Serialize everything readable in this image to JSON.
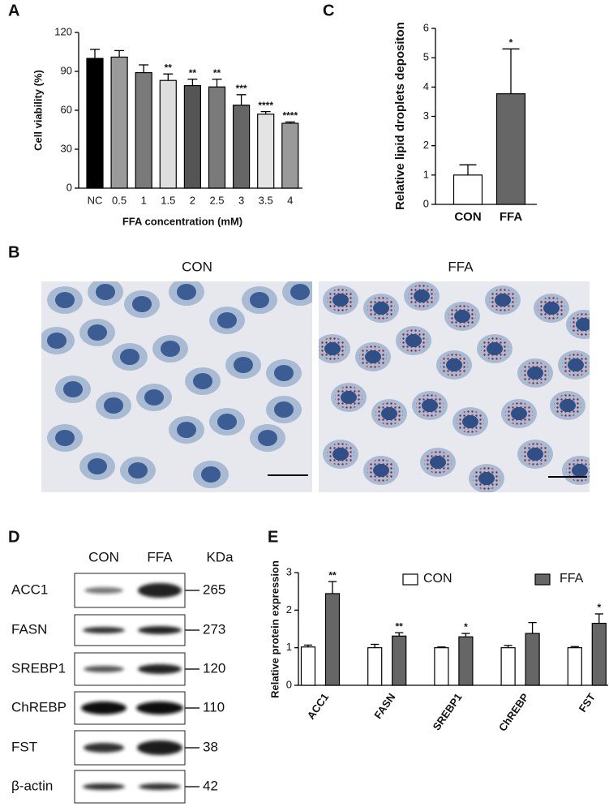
{
  "chart_data": [
    {
      "type": "bar",
      "panel_label": "A",
      "ylabel": "Cell viability (%)",
      "xlabel": "FFA concentration (mM)",
      "categories": [
        "NC",
        "0.5",
        "1",
        "1.5",
        "2",
        "2.5",
        "3",
        "3.5",
        "4"
      ],
      "values": [
        100,
        101,
        89,
        83,
        79,
        78,
        64,
        57,
        50
      ],
      "errors": [
        7,
        5,
        6,
        5,
        5,
        6,
        8,
        2,
        1
      ],
      "significance": [
        null,
        null,
        null,
        "**",
        "**",
        "**",
        "***",
        "****",
        "****"
      ],
      "colors": [
        "#000000",
        "#9a9a9a",
        "#7a7a7a",
        "#dedede",
        "#555555",
        "#7a7a7a",
        "#666666",
        "#e4e4e4",
        "#9a9a9a"
      ],
      "ylim": [
        0,
        120
      ],
      "yticks": [
        0,
        30,
        60,
        90,
        120
      ]
    },
    {
      "type": "bar",
      "panel_label": "C",
      "ylabel": "Relative lipid droplets depositon",
      "categories": [
        "CON",
        "FFA"
      ],
      "values": [
        1,
        3.77
      ],
      "errors": [
        0.35,
        1.53
      ],
      "significance": [
        null,
        "*"
      ],
      "colors": [
        "#ffffff",
        "#666666"
      ],
      "ylim": [
        0,
        6
      ],
      "yticks": [
        0,
        1,
        2,
        3,
        4,
        5,
        6
      ]
    },
    {
      "type": "bar",
      "panel_label": "E",
      "ylabel": "Relative protein expression",
      "categories": [
        "ACC1",
        "FASN",
        "SREBP1",
        "ChREBP",
        "FST"
      ],
      "series": [
        {
          "name": "CON",
          "color": "#ffffff",
          "values": [
            1.02,
            1.0,
            1.0,
            1.0,
            1.0
          ],
          "errors": [
            0.05,
            0.09,
            0.02,
            0.06,
            0.03
          ]
        },
        {
          "name": "FFA",
          "color": "#666666",
          "values": [
            2.44,
            1.31,
            1.29,
            1.38,
            1.65
          ],
          "errors": [
            0.32,
            0.09,
            0.09,
            0.29,
            0.25
          ],
          "significance": [
            "**",
            "**",
            "*",
            null,
            "*"
          ]
        }
      ],
      "ylim": [
        0,
        3
      ],
      "yticks": [
        0,
        1,
        2,
        3
      ]
    }
  ],
  "microscopy": {
    "panel_label": "B",
    "titles": [
      "CON",
      "FFA"
    ]
  },
  "western_blot": {
    "panel_label": "D",
    "columns": [
      "CON",
      "FFA"
    ],
    "unit_header": "KDa",
    "rows": [
      {
        "protein": "ACC1",
        "kda": 265
      },
      {
        "protein": "FASN",
        "kda": 273
      },
      {
        "protein": "SREBP1",
        "kda": 120
      },
      {
        "protein": "ChREBP",
        "kda": 110
      },
      {
        "protein": "FST",
        "kda": 38
      },
      {
        "protein": "β-actin",
        "kda": 42
      }
    ]
  }
}
